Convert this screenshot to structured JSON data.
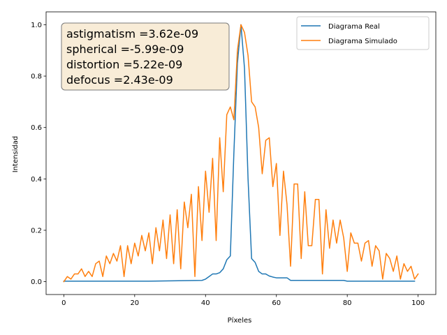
{
  "chart_data": {
    "type": "line",
    "xlabel": "Píxeles",
    "ylabel": "Intensidad",
    "xlim": [
      -5,
      105
    ],
    "ylim": [
      -0.05,
      1.05
    ],
    "xticks": [
      0,
      20,
      40,
      60,
      80,
      100
    ],
    "yticks": [
      0.0,
      0.2,
      0.4,
      0.6,
      0.8,
      1.0
    ],
    "ytick_labels": [
      "0.0",
      "0.2",
      "0.4",
      "0.6",
      "0.8",
      "1.0"
    ],
    "grid": false,
    "legend_position": "top-right",
    "annotation": [
      "astigmatism =3.62e-09",
      "spherical =-5.99e-09",
      "distortion =5.22e-09",
      "defocus =2.43e-09"
    ],
    "series": [
      {
        "name": "Diagrama Real",
        "color": "#1f77b4",
        "x": [
          0,
          24,
          39,
          40,
          41,
          42,
          43,
          44,
          45,
          46,
          47,
          48,
          49,
          50,
          51,
          52,
          53,
          54,
          55,
          56,
          57,
          58,
          59,
          60,
          61,
          62,
          63,
          64,
          79,
          80,
          99
        ],
        "y": [
          0.002,
          0.002,
          0.005,
          0.01,
          0.02,
          0.03,
          0.03,
          0.035,
          0.05,
          0.085,
          0.1,
          0.5,
          0.85,
          1.0,
          0.83,
          0.4,
          0.09,
          0.075,
          0.04,
          0.03,
          0.03,
          0.022,
          0.018,
          0.015,
          0.015,
          0.015,
          0.015,
          0.005,
          0.005,
          0.002,
          0.002
        ]
      },
      {
        "name": "Diagrama Simulado",
        "color": "#ff7f0e",
        "x": [
          0,
          1,
          2,
          3,
          4,
          5,
          6,
          7,
          8,
          9,
          10,
          11,
          12,
          13,
          14,
          15,
          16,
          17,
          18,
          19,
          20,
          21,
          22,
          23,
          24,
          25,
          26,
          27,
          28,
          29,
          30,
          31,
          32,
          33,
          34,
          35,
          36,
          37,
          38,
          39,
          40,
          41,
          42,
          43,
          44,
          45,
          46,
          47,
          48,
          49,
          50,
          51,
          52,
          53,
          54,
          55,
          56,
          57,
          58,
          59,
          60,
          61,
          62,
          63,
          64,
          65,
          66,
          67,
          68,
          69,
          70,
          71,
          72,
          73,
          74,
          75,
          76,
          77,
          78,
          79,
          80,
          81,
          82,
          83,
          84,
          85,
          86,
          87,
          88,
          89,
          90,
          91,
          92,
          93,
          94,
          95,
          96,
          97,
          98,
          99,
          100
        ],
        "y": [
          0.0,
          0.02,
          0.01,
          0.03,
          0.03,
          0.05,
          0.02,
          0.04,
          0.02,
          0.07,
          0.08,
          0.02,
          0.1,
          0.07,
          0.11,
          0.08,
          0.14,
          0.02,
          0.14,
          0.07,
          0.15,
          0.1,
          0.18,
          0.12,
          0.19,
          0.07,
          0.21,
          0.12,
          0.24,
          0.09,
          0.26,
          0.07,
          0.28,
          0.05,
          0.31,
          0.21,
          0.34,
          0.02,
          0.37,
          0.16,
          0.43,
          0.27,
          0.48,
          0.16,
          0.56,
          0.35,
          0.65,
          0.68,
          0.63,
          0.9,
          1.0,
          0.97,
          0.88,
          0.7,
          0.68,
          0.6,
          0.42,
          0.55,
          0.56,
          0.37,
          0.46,
          0.18,
          0.43,
          0.3,
          0.06,
          0.38,
          0.38,
          0.09,
          0.35,
          0.14,
          0.14,
          0.32,
          0.32,
          0.03,
          0.28,
          0.13,
          0.24,
          0.15,
          0.24,
          0.17,
          0.04,
          0.19,
          0.15,
          0.15,
          0.08,
          0.15,
          0.16,
          0.06,
          0.14,
          0.12,
          0.01,
          0.11,
          0.09,
          0.04,
          0.1,
          0.01,
          0.07,
          0.04,
          0.06,
          0.01,
          0.03
        ]
      }
    ]
  }
}
